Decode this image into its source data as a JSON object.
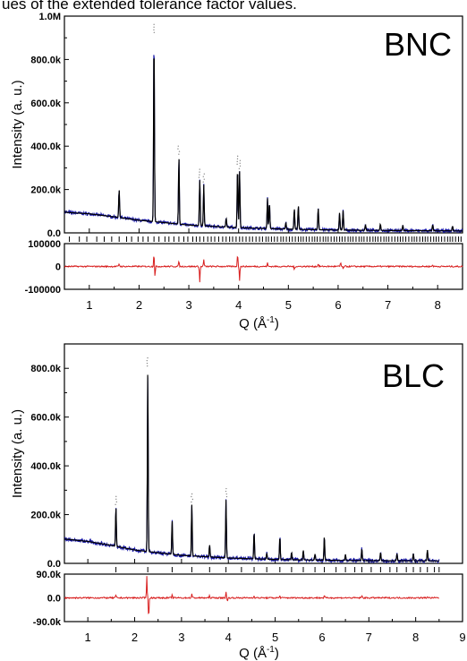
{
  "caption": "ues of the extended tolerance factor values.",
  "colors": {
    "observed": "#1a1aa8",
    "calculated": "#000000",
    "difference": "#d81e1e",
    "bragg": "#000000"
  },
  "chart_data": [
    {
      "type": "line",
      "panel": "BNC",
      "x_range": [
        0.5,
        8.5
      ],
      "main": {
        "ylim": [
          0,
          1000000
        ],
        "yticks": [
          0,
          200000,
          400000,
          600000,
          800000,
          1000000
        ],
        "ytick_labels": [
          "0.0",
          "200.0k",
          "400.0k",
          "600.0k",
          "800.0k",
          "1.0M"
        ],
        "ylabel": "Intensity (a. u.)",
        "background_points": [
          [
            0.5,
            95000
          ],
          [
            1.0,
            88000
          ],
          [
            1.5,
            74000
          ],
          [
            2.0,
            58000
          ],
          [
            2.3,
            52000
          ],
          [
            3.0,
            36000
          ],
          [
            4.0,
            24000
          ],
          [
            5.0,
            17000
          ],
          [
            6.0,
            13000
          ],
          [
            7.0,
            11000
          ],
          [
            8.5,
            9000
          ]
        ],
        "peaks": [
          [
            1.6,
            130000
          ],
          [
            2.3,
            860000
          ],
          [
            2.8,
            310000
          ],
          [
            3.22,
            210000
          ],
          [
            3.3,
            190000
          ],
          [
            3.75,
            40000
          ],
          [
            3.98,
            280000
          ],
          [
            4.02,
            260000
          ],
          [
            4.58,
            140000
          ],
          [
            4.62,
            120000
          ],
          [
            4.95,
            30000
          ],
          [
            5.12,
            95000
          ],
          [
            5.2,
            110000
          ],
          [
            5.6,
            100000
          ],
          [
            6.03,
            80000
          ],
          [
            6.1,
            90000
          ],
          [
            6.55,
            25000
          ],
          [
            6.85,
            30000
          ],
          [
            7.3,
            25000
          ],
          [
            7.9,
            28000
          ],
          [
            8.3,
            22000
          ]
        ]
      },
      "bragg_positions": [
        0.6,
        0.8,
        0.95,
        1.15,
        1.3,
        1.45,
        1.6,
        1.75,
        1.85,
        1.98,
        2.08,
        2.18,
        2.3,
        2.4,
        2.52,
        2.6,
        2.7,
        2.8,
        2.9,
        2.98,
        3.08,
        3.15,
        3.22,
        3.3,
        3.38,
        3.45,
        3.52,
        3.6,
        3.68,
        3.75,
        3.82,
        3.88,
        3.95,
        4.02,
        4.08,
        4.15,
        4.22,
        4.28,
        4.35,
        4.42,
        4.48,
        4.55,
        4.6,
        4.66,
        4.72,
        4.78,
        4.85,
        4.9,
        4.96,
        5.02,
        5.08,
        5.14,
        5.2,
        5.25,
        5.3,
        5.36,
        5.42,
        5.48,
        5.53,
        5.58,
        5.64,
        5.7,
        5.75,
        5.8,
        5.86,
        5.92,
        5.97,
        6.03,
        6.08,
        6.14,
        6.2,
        6.25,
        6.3,
        6.36,
        6.42,
        6.47,
        6.52,
        6.58,
        6.64,
        6.7,
        6.75,
        6.8,
        6.86,
        6.92,
        6.97,
        7.02,
        7.08,
        7.14,
        7.2,
        7.25,
        7.3,
        7.36,
        7.42,
        7.48,
        7.53,
        7.58,
        7.64,
        7.7,
        7.75,
        7.8,
        7.86,
        7.92,
        7.97,
        8.02,
        8.08,
        8.14,
        8.2,
        8.25,
        8.3,
        8.36,
        8.42,
        8.47
      ],
      "difference": {
        "ylim": [
          -100000,
          100000
        ],
        "yticks": [
          -100000,
          0,
          100000
        ],
        "ytick_labels": [
          "-100000",
          "0",
          "100000"
        ],
        "spikes": [
          [
            1.6,
            12000
          ],
          [
            2.3,
            60000
          ],
          [
            2.32,
            -45000
          ],
          [
            2.8,
            25000
          ],
          [
            3.22,
            -70000
          ],
          [
            3.3,
            30000
          ],
          [
            3.98,
            55000
          ],
          [
            4.02,
            -60000
          ],
          [
            4.58,
            15000
          ],
          [
            5.12,
            -15000
          ],
          [
            5.6,
            12000
          ],
          [
            6.05,
            18000
          ],
          [
            6.1,
            -12000
          ],
          [
            7.9,
            8000
          ]
        ]
      },
      "xticks": [
        1,
        2,
        3,
        4,
        5,
        6,
        7,
        8
      ],
      "xtick_labels": [
        "1",
        "2",
        "3",
        "4",
        "5",
        "6",
        "7",
        "8"
      ]
    },
    {
      "type": "line",
      "panel": "BLC",
      "x_range": [
        0.5,
        9.0
      ],
      "main": {
        "ylim": [
          0,
          900000
        ],
        "yticks": [
          0,
          200000,
          400000,
          600000,
          800000
        ],
        "ytick_labels": [
          "0.0",
          "200.0k",
          "400.0k",
          "600.0k",
          "800.0k"
        ],
        "ylabel": "Intensity (a. u.)",
        "background_points": [
          [
            0.5,
            100000
          ],
          [
            1.0,
            90000
          ],
          [
            1.5,
            74000
          ],
          [
            2.0,
            55000
          ],
          [
            2.3,
            48000
          ],
          [
            3.0,
            33000
          ],
          [
            4.0,
            22000
          ],
          [
            5.0,
            16000
          ],
          [
            6.0,
            13000
          ],
          [
            7.0,
            11000
          ],
          [
            8.5,
            10000
          ]
        ],
        "peaks": [
          [
            1.6,
            160000
          ],
          [
            2.28,
            750000
          ],
          [
            2.8,
            140000
          ],
          [
            3.22,
            210000
          ],
          [
            3.6,
            50000
          ],
          [
            3.95,
            240000
          ],
          [
            4.55,
            110000
          ],
          [
            4.82,
            25000
          ],
          [
            5.1,
            95000
          ],
          [
            5.35,
            30000
          ],
          [
            5.6,
            40000
          ],
          [
            5.85,
            25000
          ],
          [
            6.05,
            100000
          ],
          [
            6.5,
            25000
          ],
          [
            6.85,
            50000
          ],
          [
            7.25,
            35000
          ],
          [
            7.6,
            30000
          ],
          [
            7.95,
            30000
          ],
          [
            8.25,
            45000
          ]
        ]
      },
      "bragg_positions": [
        1.6,
        2.28,
        2.8,
        3.22,
        3.6,
        3.95,
        4.28,
        4.55,
        4.82,
        5.1,
        5.35,
        5.6,
        5.85,
        6.05,
        6.3,
        6.5,
        6.7,
        6.85,
        7.05,
        7.25,
        7.45,
        7.6,
        7.8,
        7.95,
        8.1,
        8.25,
        8.4,
        8.5
      ],
      "difference": {
        "ylim": [
          -90000,
          90000
        ],
        "yticks": [
          -90000,
          0,
          90000
        ],
        "ytick_labels": [
          "-90.0k",
          "0.0",
          "90.0k"
        ],
        "spikes": [
          [
            1.6,
            10000
          ],
          [
            2.26,
            85000
          ],
          [
            2.3,
            -80000
          ],
          [
            2.8,
            12000
          ],
          [
            3.22,
            15000
          ],
          [
            3.6,
            8000
          ],
          [
            3.95,
            25000
          ],
          [
            3.98,
            -15000
          ],
          [
            4.55,
            10000
          ],
          [
            5.1,
            8000
          ],
          [
            6.05,
            8000
          ],
          [
            6.85,
            8000
          ],
          [
            8.25,
            6000
          ]
        ]
      },
      "xticks": [
        1,
        2,
        3,
        4,
        5,
        6,
        7,
        8,
        9
      ],
      "xtick_labels": [
        "1",
        "2",
        "3",
        "4",
        "5",
        "6",
        "7",
        "8",
        "9"
      ]
    }
  ],
  "xlabel": "Q (Å",
  "xlabel_sup": "-1",
  "xlabel_close": ")"
}
